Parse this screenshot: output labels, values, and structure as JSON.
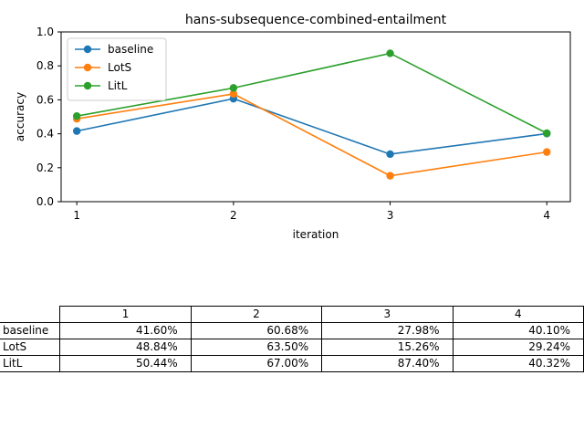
{
  "chart_data": {
    "type": "line",
    "title": "hans-subsequence-combined-entailment",
    "xlabel": "iteration",
    "ylabel": "accuracy",
    "x": [
      1,
      2,
      3,
      4
    ],
    "xlim": [
      0.9,
      4.15
    ],
    "ylim": [
      0.0,
      1.0
    ],
    "yticks": [
      0.0,
      0.2,
      0.4,
      0.6,
      0.8,
      1.0
    ],
    "ytick_labels": [
      "0.0",
      "0.2",
      "0.4",
      "0.6",
      "0.8",
      "1.0"
    ],
    "xtick_labels": [
      "1",
      "2",
      "3",
      "4"
    ],
    "grid": false,
    "legend_position": "top-left",
    "series": [
      {
        "name": "baseline",
        "color": "#1f77b4",
        "values": [
          0.416,
          0.6068,
          0.2798,
          0.401
        ]
      },
      {
        "name": "LotS",
        "color": "#ff7f0e",
        "values": [
          0.4884,
          0.635,
          0.1526,
          0.2924
        ]
      },
      {
        "name": "LitL",
        "color": "#2ca02c",
        "values": [
          0.5044,
          0.67,
          0.874,
          0.4032
        ]
      }
    ]
  },
  "table": {
    "columns": [
      "1",
      "2",
      "3",
      "4"
    ],
    "rows": [
      {
        "label": "baseline",
        "cells": [
          "41.60%",
          "60.68%",
          "27.98%",
          "40.10%"
        ]
      },
      {
        "label": "LotS",
        "cells": [
          "48.84%",
          "63.50%",
          "15.26%",
          "29.24%"
        ]
      },
      {
        "label": "LitL",
        "cells": [
          "50.44%",
          "67.00%",
          "87.40%",
          "40.32%"
        ]
      }
    ]
  }
}
